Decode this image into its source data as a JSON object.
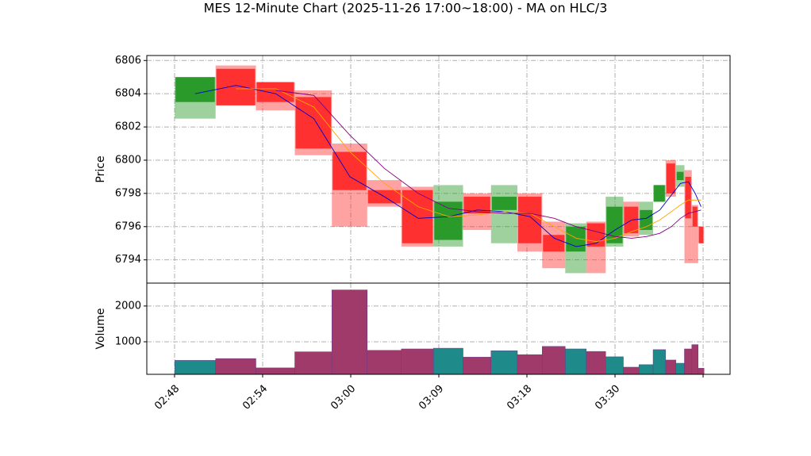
{
  "chart_data": [
    {
      "type": "candlestick",
      "title": "MES 12-Minute Chart (2025-11-26 17:00~18:00) - MA on HLC/3",
      "ylabel": "Price",
      "x": [
        0.234,
        0.698,
        1.149,
        1.581,
        1.991,
        2.383,
        2.766,
        3.113,
        3.437,
        3.748,
        4.036,
        4.311,
        4.559,
        4.788,
        5.0,
        5.189,
        5.356,
        5.509,
        5.64,
        5.743,
        5.833,
        5.91,
        5.977
      ],
      "open": [
        6803.5,
        6805.5,
        6804.7,
        6803.8,
        6800.5,
        6798.2,
        6798.2,
        6795.2,
        6797.8,
        6797,
        6797.8,
        6795.5,
        6794.5,
        6796.2,
        6795,
        6797.2,
        6795.8,
        6797.5,
        6799.8,
        6798.8,
        6799,
        6797.2,
        6796
      ],
      "high": [
        6805,
        6805.7,
        6804.7,
        6804.2,
        6801,
        6798.8,
        6798.4,
        6798.5,
        6798,
        6798.5,
        6798,
        6796.3,
        6796.2,
        6796.3,
        6797.8,
        6797.5,
        6797.5,
        6798.5,
        6800,
        6799.7,
        6799.4,
        6797.3,
        6796
      ],
      "low": [
        6802.5,
        6803.3,
        6803,
        6800.3,
        6796,
        6797.2,
        6794.8,
        6794.8,
        6795.8,
        6795,
        6794.5,
        6793.5,
        6793.2,
        6793.2,
        6794.8,
        6795.4,
        6795.5,
        6797.5,
        6797.8,
        6798.4,
        6793.8,
        6793.8,
        6795
      ],
      "close": [
        6805,
        6803.3,
        6803.5,
        6800.7,
        6798.2,
        6797.4,
        6795,
        6797.5,
        6796.8,
        6797.8,
        6795,
        6794.5,
        6796,
        6794.8,
        6797.2,
        6795.6,
        6797,
        6798.5,
        6798,
        6799.3,
        6796.5,
        6796,
        6795
      ],
      "up_color": "#2a9a2a",
      "down_color": "#ff3030",
      "series": [
        {
          "color": "#0000cc",
          "values": [
            6804,
            6804.5,
            6804,
            6802.5,
            6799,
            6797.8,
            6796.5,
            6796.6,
            6797,
            6796.9,
            6796.6,
            6795.3,
            6794.8,
            6795,
            6795.8,
            6796.4,
            6796.5,
            6797,
            6797.9,
            6798.6,
            6798.7,
            6798,
            6797.2
          ]
        },
        {
          "color": "#ffa500",
          "values": [
            null,
            6804.3,
            6804.3,
            6803.2,
            6800.5,
            6798.6,
            6797.2,
            6796.6,
            6796.7,
            6796.9,
            6796.8,
            6796,
            6795.3,
            6795.1,
            6795.3,
            6795.7,
            6796,
            6796.4,
            6796.9,
            6797.3,
            6797.6,
            6797.6,
            6797.6
          ]
        },
        {
          "color": "#800080",
          "values": [
            null,
            null,
            6804.2,
            6803.9,
            6801.5,
            6799.5,
            6798,
            6797.1,
            6796.9,
            6796.8,
            6796.8,
            6796.5,
            6796,
            6795.7,
            6795.4,
            6795.3,
            6795.4,
            6795.6,
            6796,
            6796.5,
            6796.8,
            6796.9,
            6797
          ]
        }
      ],
      "xlim": [
        -0.315,
        6.306
      ],
      "xticks": [
        0,
        1,
        2,
        3,
        4,
        5,
        6
      ],
      "ylim": [
        6792.6,
        6806.3
      ],
      "yticks": [
        6794,
        6796,
        6798,
        6800,
        6802,
        6804,
        6806
      ],
      "grid": true
    },
    {
      "type": "bar",
      "ylabel": "Volume",
      "values": [
        480,
        530,
        270,
        720,
        2450,
        760,
        800,
        820,
        570,
        750,
        640,
        870,
        800,
        730,
        580,
        290,
        360,
        780,
        490,
        400,
        800,
        920,
        260
      ],
      "up_color": "#1f8a8a",
      "down_color": "#a03a6a",
      "xlim": [
        -0.315,
        6.306
      ],
      "xticks": [
        {
          "value": 0,
          "label": "02:48"
        },
        {
          "value": 1,
          "label": "02:54"
        },
        {
          "value": 2,
          "label": "03:00"
        },
        {
          "value": 3,
          "label": "03:09"
        },
        {
          "value": 4,
          "label": "03:18"
        },
        {
          "value": 5,
          "label": "03:30"
        },
        {
          "value": 6,
          "label": null
        }
      ],
      "ylim": [
        90,
        2640
      ],
      "yticks": [
        1000,
        2000
      ],
      "grid": true
    }
  ]
}
